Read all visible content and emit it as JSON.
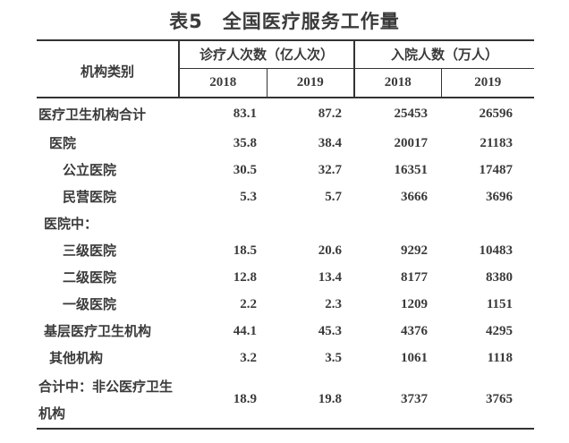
{
  "title": "表5　全国医疗服务工作量",
  "table": {
    "row_header": "机构类别",
    "groups": [
      {
        "label": "诊疗人次数（亿人次）",
        "years": [
          "2018",
          "2019"
        ]
      },
      {
        "label": "入院人数（万人）",
        "years": [
          "2018",
          "2019"
        ]
      }
    ],
    "rows": [
      {
        "label": "医疗卫生机构合计",
        "indent": 0,
        "values": [
          "83.1",
          "87.2",
          "25453",
          "26596"
        ]
      },
      {
        "label": "医院",
        "indent": 2,
        "values": [
          "35.8",
          "38.4",
          "20017",
          "21183"
        ]
      },
      {
        "label": "公立医院",
        "indent": 3,
        "values": [
          "30.5",
          "32.7",
          "16351",
          "17487"
        ]
      },
      {
        "label": "民营医院",
        "indent": 3,
        "values": [
          "5.3",
          "5.7",
          "3666",
          "3696"
        ]
      },
      {
        "label": "医院中：",
        "indent": 1,
        "values": [
          "",
          "",
          "",
          ""
        ]
      },
      {
        "label": "三级医院",
        "indent": 3,
        "values": [
          "18.5",
          "20.6",
          "9292",
          "10483"
        ]
      },
      {
        "label": "二级医院",
        "indent": 3,
        "values": [
          "12.8",
          "13.4",
          "8177",
          "8380"
        ]
      },
      {
        "label": "一级医院",
        "indent": 3,
        "values": [
          "2.2",
          "2.3",
          "1209",
          "1151"
        ]
      },
      {
        "label": "基层医疗卫生机构",
        "indent": 1,
        "values": [
          "44.1",
          "45.3",
          "4376",
          "4295"
        ]
      },
      {
        "label": "其他机构",
        "indent": 2,
        "values": [
          "3.2",
          "3.5",
          "1061",
          "1118"
        ]
      },
      {
        "label": "合计中：非公医疗卫生机构",
        "indent": 0,
        "values": [
          "18.9",
          "19.8",
          "3737",
          "3765"
        ]
      }
    ]
  },
  "colors": {
    "text": "#3a3a3a",
    "line": "#333333",
    "background": "#ffffff"
  },
  "chart_data": {
    "type": "table",
    "title": "表5　全国医疗服务工作量",
    "column_groups": [
      "诊疗人次数（亿人次）",
      "入院人数（万人）"
    ],
    "columns": [
      "机构类别",
      "诊疗人次数2018",
      "诊疗人次数2019",
      "入院人数2018",
      "入院人数2019"
    ],
    "rows": [
      [
        "医疗卫生机构合计",
        83.1,
        87.2,
        25453,
        26596
      ],
      [
        "医院",
        35.8,
        38.4,
        20017,
        21183
      ],
      [
        "公立医院",
        30.5,
        32.7,
        16351,
        17487
      ],
      [
        "民营医院",
        5.3,
        5.7,
        3666,
        3696
      ],
      [
        "医院中：",
        null,
        null,
        null,
        null
      ],
      [
        "三级医院",
        18.5,
        20.6,
        9292,
        10483
      ],
      [
        "二级医院",
        12.8,
        13.4,
        8177,
        8380
      ],
      [
        "一级医院",
        2.2,
        2.3,
        1209,
        1151
      ],
      [
        "基层医疗卫生机构",
        44.1,
        45.3,
        4376,
        4295
      ],
      [
        "其他机构",
        3.2,
        3.5,
        1061,
        1118
      ],
      [
        "合计中：非公医疗卫生机构",
        18.9,
        19.8,
        3737,
        3765
      ]
    ]
  }
}
